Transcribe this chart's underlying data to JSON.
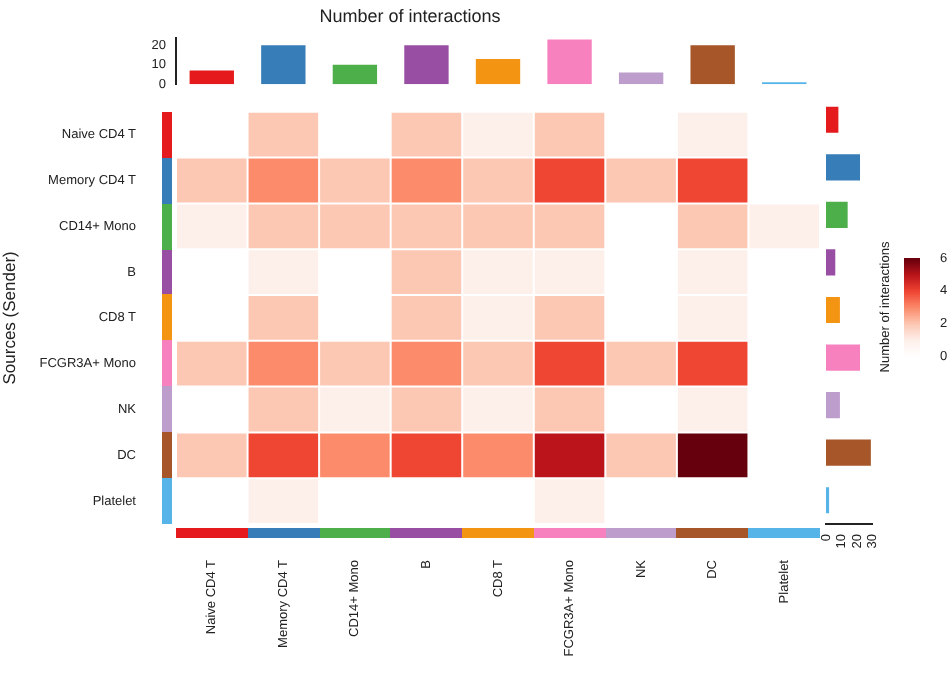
{
  "chart_data": [
    {
      "type": "heatmap",
      "ylabel": "Sources (Sender)",
      "categories": [
        "Naive CD4 T",
        "Memory CD4 T",
        "CD14+ Mono",
        "B",
        "CD8 T",
        "FCGR3A+ Mono",
        "NK",
        "DC",
        "Platelet"
      ],
      "y_categories": [
        "Naive CD4 T",
        "Memory CD4 T",
        "CD14+ Mono",
        "B",
        "CD8 T",
        "FCGR3A+ Mono",
        "NK",
        "DC",
        "Platelet"
      ],
      "cells": [
        [
          0,
          2,
          0,
          2,
          1,
          2,
          0,
          1,
          0
        ],
        [
          2,
          3,
          2,
          3,
          2,
          4,
          2,
          4,
          0
        ],
        [
          1,
          2,
          2,
          2,
          2,
          2,
          0,
          2,
          1
        ],
        [
          0,
          1,
          0,
          2,
          1,
          1,
          0,
          1,
          0
        ],
        [
          0,
          2,
          0,
          2,
          1,
          2,
          0,
          1,
          0
        ],
        [
          2,
          3,
          2,
          3,
          2,
          4,
          2,
          4,
          0
        ],
        [
          0,
          2,
          1,
          2,
          1,
          2,
          0,
          1,
          0
        ],
        [
          2,
          4,
          3,
          4,
          3,
          5,
          2,
          6,
          0
        ],
        [
          0,
          1,
          0,
          0,
          0,
          1,
          0,
          0,
          0
        ]
      ],
      "clim": [
        0,
        6
      ],
      "cticks": [
        0,
        2,
        4,
        6
      ],
      "clabel": "Number of interactions"
    },
    {
      "type": "bar",
      "title": "Number of interactions",
      "categories": [
        null,
        null,
        null,
        null,
        null,
        null,
        null,
        null,
        null
      ],
      "values": [
        7,
        20,
        10,
        20,
        13,
        23,
        6,
        20,
        1
      ],
      "colors": [
        "#e41a1c",
        "#377eb8",
        "#4daf4a",
        "#984ea3",
        "#f39412",
        "#f781bf",
        "#bc9dcc",
        "#a65628",
        "#56b4e9"
      ],
      "ylim": [
        0,
        24
      ],
      "yticks": [
        0,
        10,
        20
      ],
      "tick_labels": "y"
    },
    {
      "type": "bar",
      "orientation": "horizontal",
      "categories": [
        null,
        null,
        null,
        null,
        null,
        null,
        null,
        null,
        null
      ],
      "values": [
        8,
        22,
        14,
        6,
        9,
        22,
        9,
        29,
        2
      ],
      "colors": [
        "#e41a1c",
        "#377eb8",
        "#4daf4a",
        "#984ea3",
        "#f39412",
        "#f781bf",
        "#bc9dcc",
        "#a65628",
        "#56b4e9"
      ],
      "xlim": [
        0,
        30
      ],
      "xticks": [
        0,
        10,
        20,
        30
      ],
      "tick_labels": "x"
    }
  ]
}
